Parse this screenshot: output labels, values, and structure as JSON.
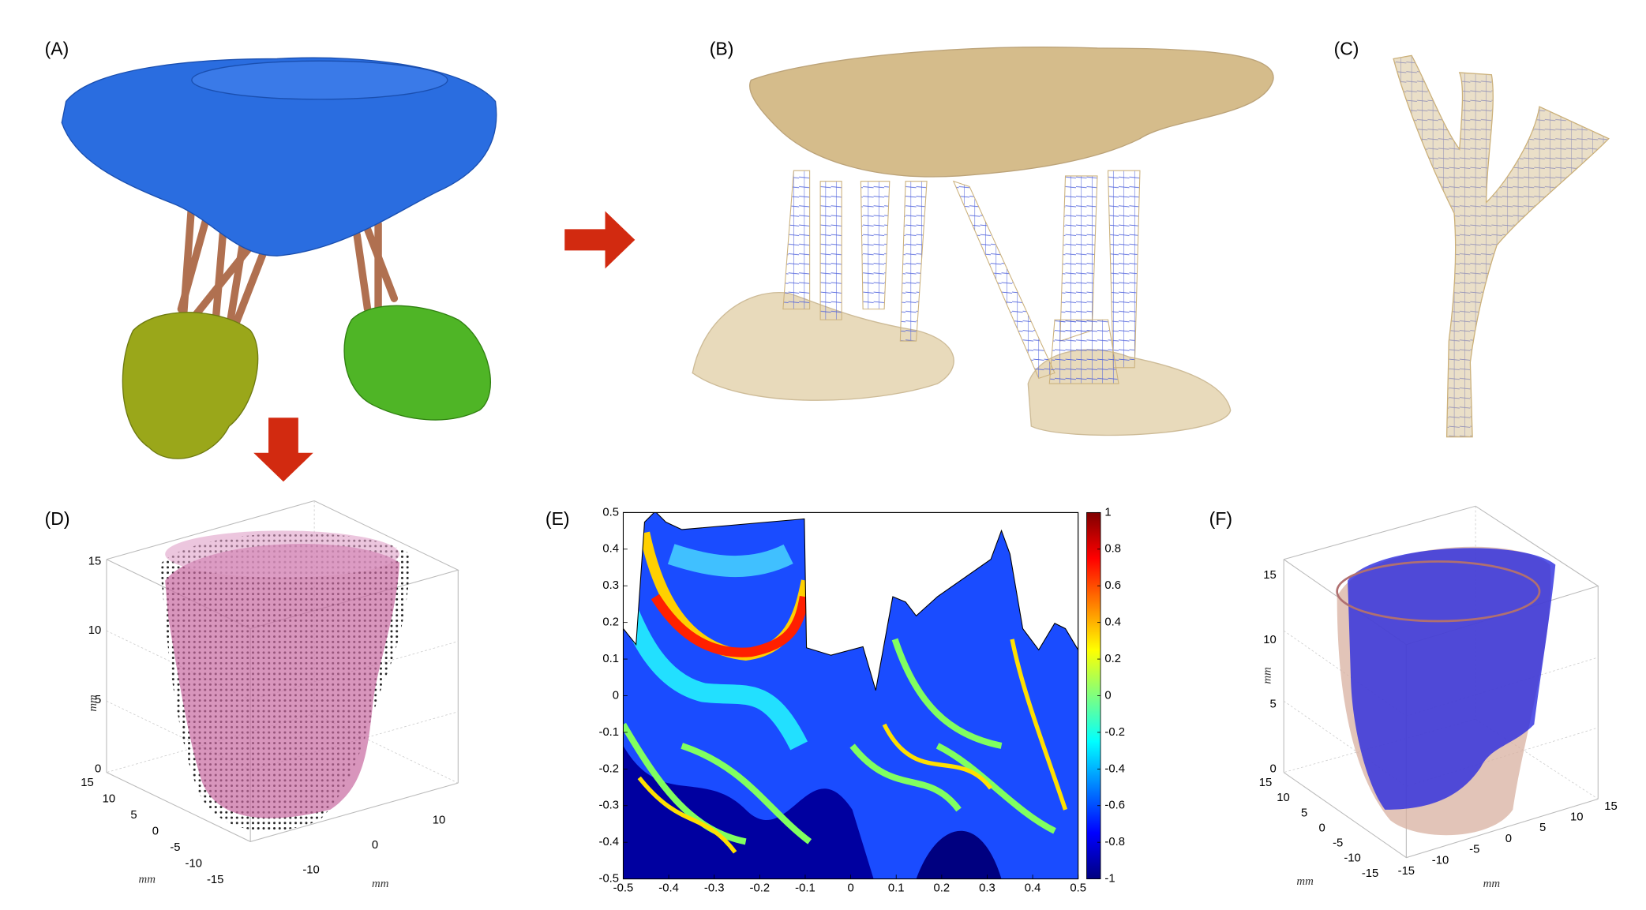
{
  "panels": {
    "a": {
      "label": "(A)"
    },
    "b": {
      "label": "(B)"
    },
    "c": {
      "label": "(C)"
    },
    "d": {
      "label": "(D)",
      "zticks": [
        0,
        5,
        10,
        15
      ],
      "yticks": [
        15,
        10,
        5,
        0,
        -5,
        -10,
        -15
      ],
      "xticks": [
        -10,
        0,
        10
      ],
      "zlabel": "mm",
      "ylabel": "mm",
      "xlabel": "mm"
    },
    "e": {
      "label": "(E)"
    },
    "f": {
      "label": "(F)",
      "zticks": [
        0,
        5,
        10,
        15
      ],
      "yticks": [
        15,
        10,
        5,
        0,
        -5,
        -10,
        -15
      ],
      "xticks": [
        -15,
        -10,
        -5,
        0,
        5,
        10,
        15
      ],
      "zlabel": "mm",
      "ylabel": "mm",
      "xlabel": "mm"
    }
  },
  "chart_data": {
    "type": "heatmap",
    "xlim": [
      -0.5,
      0.5
    ],
    "ylim": [
      -0.5,
      0.5
    ],
    "xticks": [
      -0.5,
      -0.4,
      -0.3,
      -0.2,
      -0.1,
      0,
      0.1,
      0.2,
      0.3,
      0.4,
      0.5
    ],
    "yticks": [
      -0.5,
      -0.4,
      -0.3,
      -0.2,
      -0.1,
      0,
      0.1,
      0.2,
      0.3,
      0.4,
      0.5
    ],
    "colorbar": {
      "lim": [
        -1,
        1
      ],
      "ticks": [
        -1,
        -0.8,
        -0.6,
        -0.4,
        -0.2,
        0,
        0.2,
        0.4,
        0.6,
        0.8,
        1
      ]
    }
  }
}
